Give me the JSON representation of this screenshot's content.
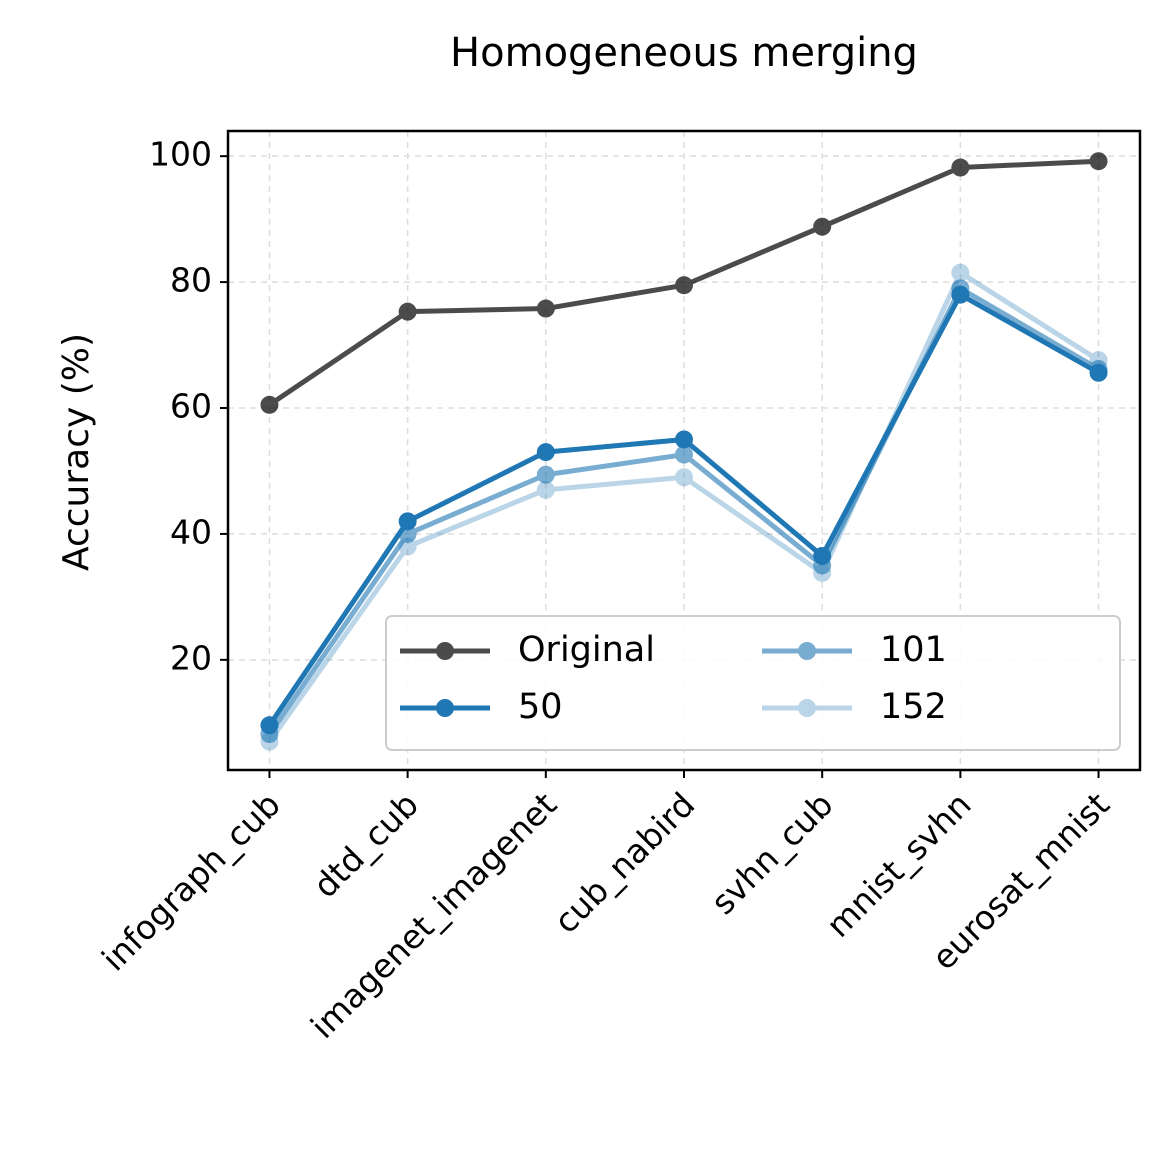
{
  "chart_data": {
    "type": "line",
    "title": "Homogeneous merging",
    "y_label": "Accuracy (%)",
    "categories": [
      "infograph_cub",
      "dtd_cub",
      "imagenet_imagenet",
      "cub_nabird",
      "svhn_cub",
      "mnist_svhn",
      "eurosat_mnist"
    ],
    "series": [
      {
        "name": "Original",
        "color": "#000000",
        "opacity": 0.7,
        "values": [
          60.5,
          75.3,
          75.8,
          79.5,
          88.8,
          98.2,
          99.2
        ]
      },
      {
        "name": "50",
        "color": "#1f77b4",
        "opacity": 1,
        "values": [
          9.6,
          42,
          53,
          55,
          36.5,
          78,
          65.6
        ]
      },
      {
        "name": "101",
        "color": "#1f77b4",
        "opacity": 0.6,
        "values": [
          8.2,
          40,
          49.4,
          52.6,
          35,
          79,
          66.2
        ]
      },
      {
        "name": "152",
        "color": "#1f77b4",
        "opacity": 0.3,
        "values": [
          7,
          38,
          47,
          49,
          33.8,
          81.5,
          67.6
        ]
      }
    ],
    "ylim": [
      2.5,
      104
    ],
    "yticks": [
      20,
      40,
      60,
      80,
      100
    ],
    "grid": true,
    "legend": {
      "loc": "lower right",
      "ncol": 2
    }
  }
}
